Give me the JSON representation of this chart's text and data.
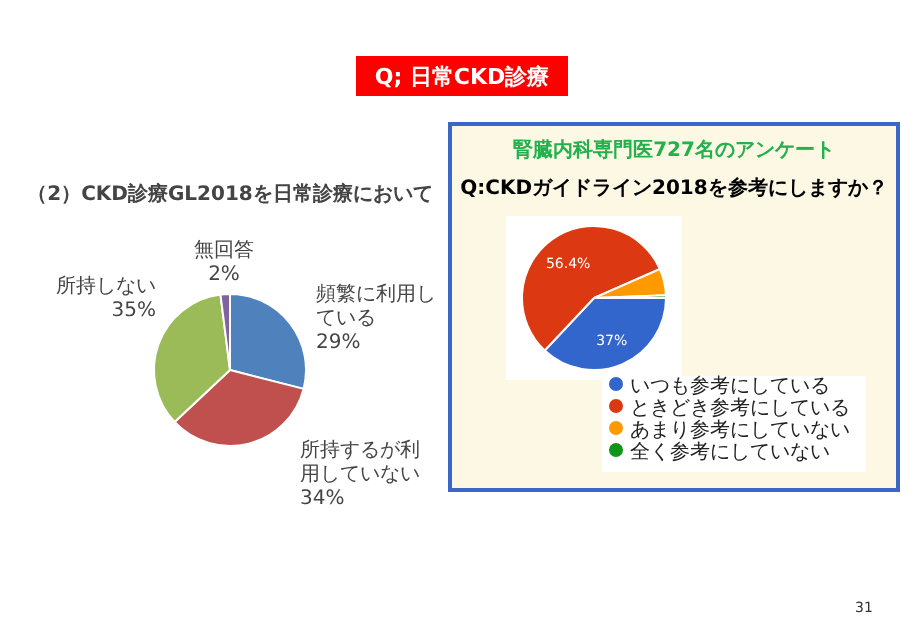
{
  "chart_data": [
    {
      "type": "pie",
      "title": "（2）CKD診療GL2018を日常診療において",
      "categories": [
        "頻繁に利用している",
        "所持するが利用していない",
        "所持しない",
        "無回答"
      ],
      "values": [
        29,
        34,
        35,
        2
      ],
      "colors": [
        "#4f81bd",
        "#c0504d",
        "#9bbb59",
        "#8064a2"
      ],
      "value_labels": [
        "29%",
        "34%",
        "35%",
        "2%"
      ],
      "annotations": [
        "Q; 日常CKD診療",
        "31"
      ]
    },
    {
      "type": "pie",
      "title": "腎臓内科専門医727名のアンケート",
      "subtitle": "Q:CKDガイドライン2018を参考にしますか？",
      "categories": [
        "いつも参考にしている",
        "ときどき参考にしている",
        "あまり参考にしていない",
        "全く参考にしていない"
      ],
      "values": [
        37,
        56.4,
        6,
        0.6
      ],
      "colors": [
        "#3366cc",
        "#dc3912",
        "#ff9900",
        "#109618"
      ],
      "value_labels": [
        "37%",
        "56.4%",
        null,
        null
      ],
      "legend": "bottom right"
    }
  ]
}
